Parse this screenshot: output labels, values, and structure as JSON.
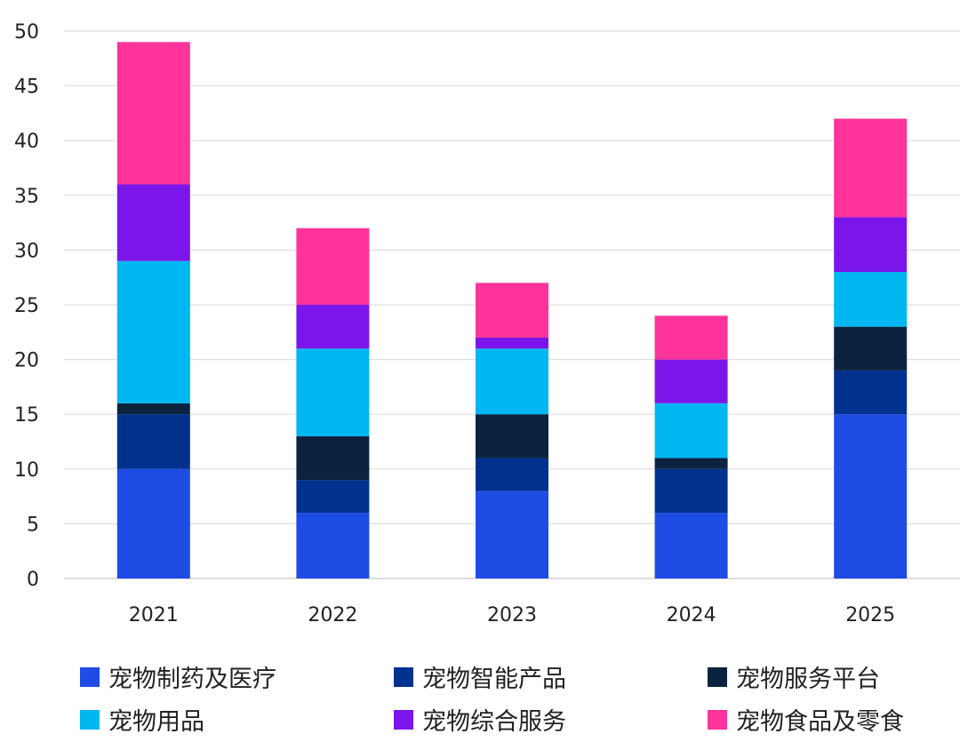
{
  "chart_data": {
    "type": "bar",
    "stacked": true,
    "title": "",
    "xlabel": "",
    "ylabel": "",
    "ylim": [
      0,
      50
    ],
    "yticks": [
      0,
      5,
      10,
      15,
      20,
      25,
      30,
      35,
      40,
      45,
      50
    ],
    "grid": true,
    "legend_position": "bottom",
    "categories": [
      "2021",
      "2022",
      "2023",
      "2024",
      "2025"
    ],
    "series": [
      {
        "name": "宠物制药及医疗",
        "color": "#1f4ce4",
        "values": [
          10,
          6,
          8,
          6,
          15
        ]
      },
      {
        "name": "宠物智能产品",
        "color": "#00318f",
        "values": [
          5,
          3,
          3,
          4,
          4
        ]
      },
      {
        "name": "宠物服务平台",
        "color": "#0c233f",
        "values": [
          1,
          4,
          4,
          1,
          4
        ]
      },
      {
        "name": "宠物用品",
        "color": "#00b7f1",
        "values": [
          13,
          8,
          6,
          5,
          5
        ]
      },
      {
        "name": "宠物综合服务",
        "color": "#7b16ea",
        "values": [
          7,
          4,
          1,
          4,
          5
        ]
      },
      {
        "name": "宠物食品及零食",
        "color": "#ff3399",
        "values": [
          13,
          7,
          5,
          4,
          9
        ]
      }
    ]
  }
}
